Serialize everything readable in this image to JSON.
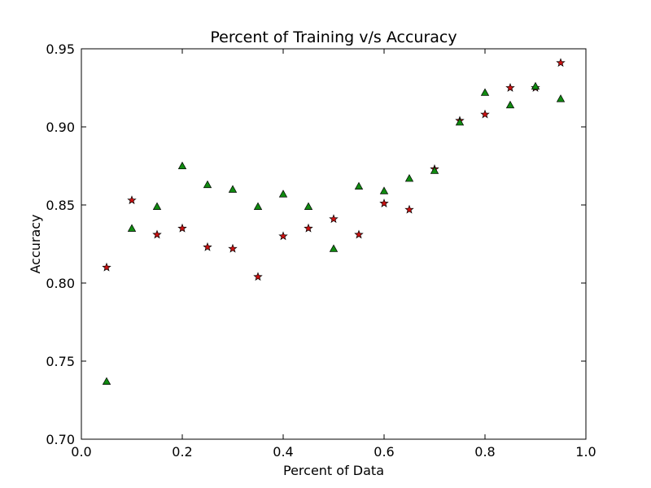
{
  "chart_data": {
    "type": "scatter",
    "title": "Percent of Training v/s Accuracy",
    "xlabel": "Percent of Data",
    "ylabel": "Accuracy",
    "xlim": [
      0.0,
      1.0
    ],
    "ylim": [
      0.7,
      0.95
    ],
    "x_ticks": [
      0.0,
      0.2,
      0.4,
      0.6,
      0.8,
      1.0
    ],
    "x_tick_labels": [
      "0.0",
      "0.2",
      "0.4",
      "0.6",
      "0.8",
      "1.0"
    ],
    "y_ticks": [
      0.7,
      0.75,
      0.8,
      0.85,
      0.9,
      0.95
    ],
    "y_tick_labels": [
      "0.70",
      "0.75",
      "0.80",
      "0.85",
      "0.90",
      "0.95"
    ],
    "grid": false,
    "legend": "none",
    "series": [
      {
        "marker": "star",
        "color": "#cc1111",
        "x": [
          0.05,
          0.1,
          0.15,
          0.2,
          0.25,
          0.3,
          0.35,
          0.4,
          0.45,
          0.5,
          0.55,
          0.6,
          0.65,
          0.7,
          0.75,
          0.8,
          0.85,
          0.9,
          0.95
        ],
        "y": [
          0.81,
          0.853,
          0.831,
          0.835,
          0.823,
          0.822,
          0.804,
          0.83,
          0.835,
          0.841,
          0.831,
          0.851,
          0.847,
          0.873,
          0.904,
          0.908,
          0.925,
          0.925,
          0.941
        ]
      },
      {
        "marker": "triangle",
        "color": "#108a10",
        "x": [
          0.05,
          0.1,
          0.15,
          0.2,
          0.25,
          0.3,
          0.35,
          0.4,
          0.45,
          0.5,
          0.55,
          0.6,
          0.65,
          0.7,
          0.75,
          0.8,
          0.85,
          0.9,
          0.95
        ],
        "y": [
          0.737,
          0.835,
          0.849,
          0.875,
          0.863,
          0.86,
          0.849,
          0.857,
          0.849,
          0.822,
          0.862,
          0.859,
          0.867,
          0.872,
          0.903,
          0.922,
          0.914,
          0.926,
          0.918
        ]
      }
    ]
  }
}
